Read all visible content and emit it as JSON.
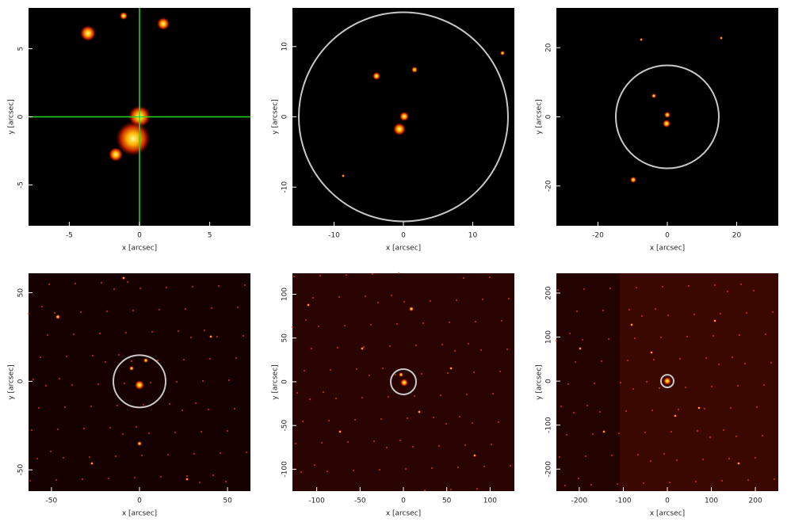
{
  "chart_data": [
    {
      "type": "image",
      "xlabel": "x [arcsec]",
      "ylabel": "y [arcsec]",
      "xlim": [
        -7.9,
        7.9
      ],
      "ylim": [
        -8,
        8
      ],
      "xticks": [
        -5,
        0,
        5
      ],
      "yticks": [
        -5,
        0,
        5
      ]
    },
    {
      "type": "image",
      "xlabel": "x [arcsec]",
      "ylabel": "y [arcsec]",
      "xlim": [
        -16,
        16
      ],
      "ylim": [
        -15.5,
        15.5
      ],
      "xticks": [
        -10,
        0,
        10
      ],
      "yticks": [
        -10,
        0,
        10
      ]
    },
    {
      "type": "image",
      "xlabel": "x [arcsec]",
      "ylabel": "y [arcsec]",
      "xlim": [
        -32,
        32
      ],
      "ylim": [
        -31.5,
        31.5
      ],
      "xticks": [
        -20,
        0,
        20
      ],
      "yticks": [
        -20,
        0,
        20
      ]
    },
    {
      "type": "image",
      "xlabel": "x [arcsec]",
      "ylabel": "y [arcsec]",
      "xlim": [
        -63,
        63
      ],
      "ylim": [
        -62,
        61
      ],
      "xticks": [
        -50,
        0,
        50
      ],
      "yticks": [
        -50,
        0,
        50
      ]
    },
    {
      "type": "image",
      "xlabel": "x [arcsec]",
      "ylabel": "y [arcsec]",
      "xlim": [
        -128,
        128
      ],
      "ylim": [
        -125,
        124
      ],
      "xticks": [
        -100,
        -50,
        0,
        50,
        100
      ],
      "yticks": [
        -100,
        -50,
        0,
        50,
        100
      ]
    },
    {
      "type": "image",
      "xlabel": "x [arcsec]",
      "ylabel": "y [arcsec]",
      "xlim": [
        -252,
        252
      ],
      "ylim": [
        -250,
        245
      ],
      "xticks": [
        -200,
        -100,
        0,
        100,
        200
      ],
      "yticks": [
        -200,
        -100,
        0,
        100,
        200
      ]
    }
  ]
}
